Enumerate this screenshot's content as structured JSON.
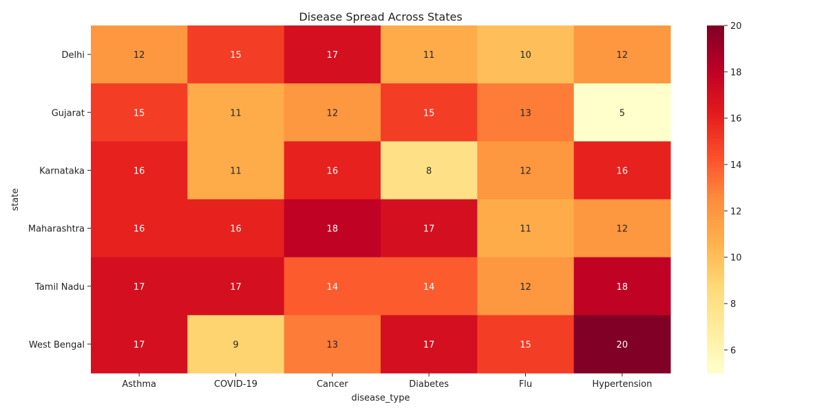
{
  "chart_data": {
    "type": "heatmap",
    "title": "Disease Spread Across States",
    "xlabel": "disease_type",
    "ylabel": "state",
    "x_categories": [
      "Asthma",
      "COVID-19",
      "Cancer",
      "Diabetes",
      "Flu",
      "Hypertension"
    ],
    "y_categories": [
      "Delhi",
      "Gujarat",
      "Karnataka",
      "Maharashtra",
      "Tamil Nadu",
      "West Bengal"
    ],
    "values": [
      [
        12,
        15,
        17,
        11,
        10,
        12
      ],
      [
        15,
        11,
        12,
        15,
        13,
        5
      ],
      [
        16,
        11,
        16,
        8,
        12,
        16
      ],
      [
        16,
        16,
        18,
        17,
        11,
        12
      ],
      [
        17,
        17,
        14,
        14,
        12,
        18
      ],
      [
        17,
        9,
        13,
        17,
        15,
        20
      ]
    ],
    "colorbar": {
      "colormap": "YlOrRd",
      "range": [
        5,
        20
      ],
      "ticks": [
        6,
        8,
        10,
        12,
        14,
        16,
        18,
        20
      ]
    },
    "annotations": true
  }
}
